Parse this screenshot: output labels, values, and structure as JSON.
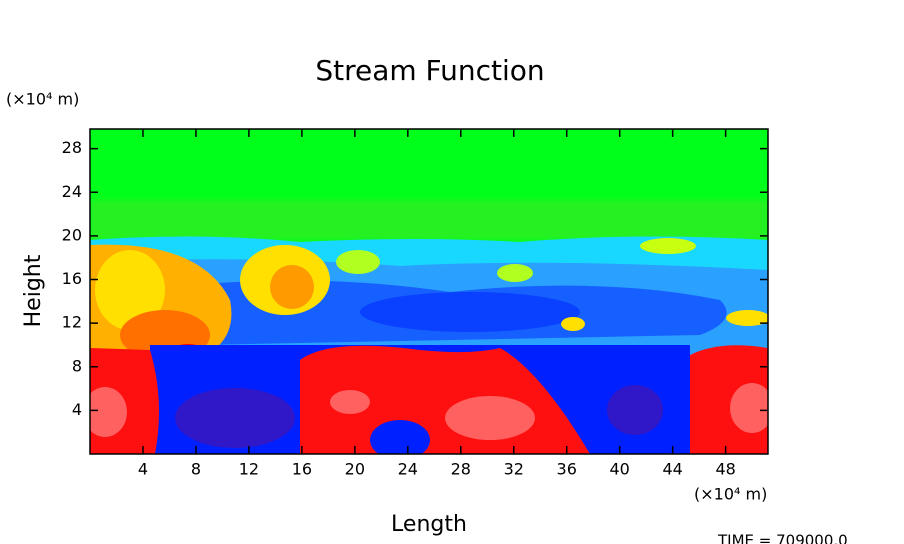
{
  "chart_data": {
    "type": "contour",
    "title": "Stream Function",
    "xlabel": "Length",
    "ylabel": "Height",
    "x_unit": "(×10⁴ m)",
    "y_unit": "(×10⁴ m)",
    "annotation": "TIME = 709000.0",
    "xlim": [
      0,
      51.2
    ],
    "ylim": [
      0,
      29.8
    ],
    "xticks": [
      4,
      8,
      12,
      16,
      20,
      24,
      28,
      32,
      36,
      40,
      44,
      48
    ],
    "yticks": [
      4,
      8,
      12,
      16,
      20,
      24,
      28
    ]
  }
}
